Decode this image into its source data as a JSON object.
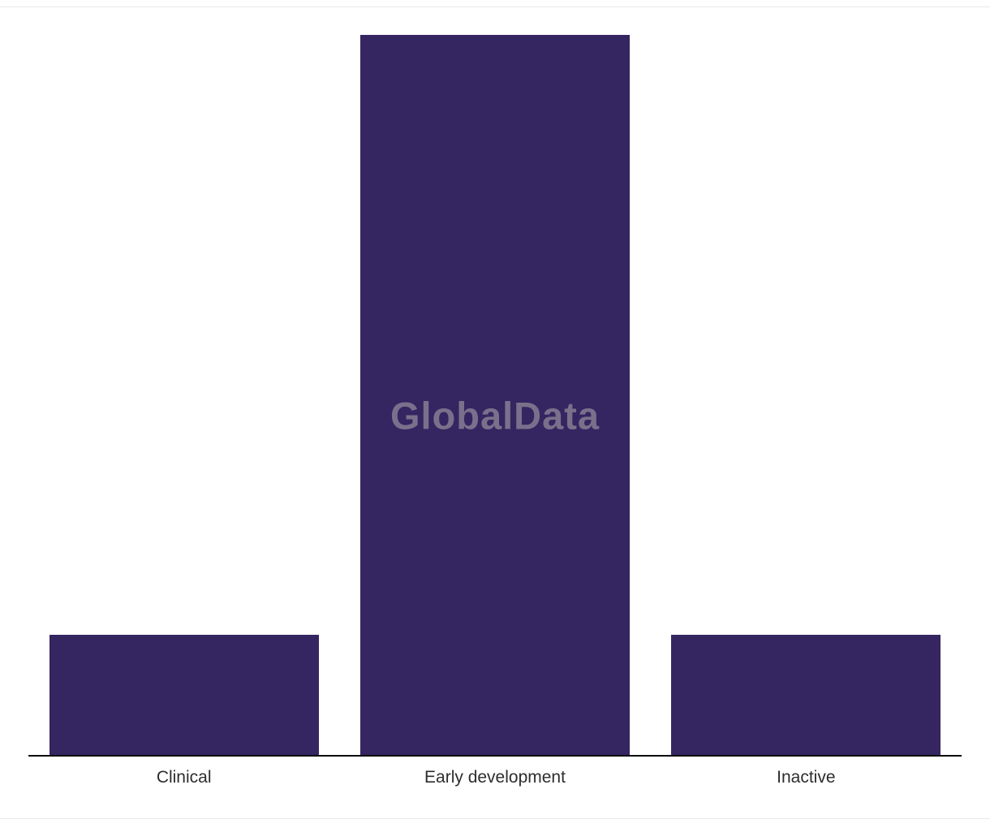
{
  "page": {
    "background": "#ffffff",
    "divider_color": "#e7eaea"
  },
  "watermark": {
    "text": "GlobalData",
    "color": "rgba(176,176,176,0.55)"
  },
  "chart_data": {
    "type": "bar",
    "categories": [
      "Clinical",
      "Early development",
      "Inactive"
    ],
    "values": [
      2,
      12,
      2
    ],
    "title": "",
    "xlabel": "",
    "ylabel": "",
    "ylim": [
      0,
      12
    ],
    "bar_color": "#352561",
    "axis_color": "#0c0c0c",
    "grid": false,
    "legend": false,
    "value_labels": false
  }
}
